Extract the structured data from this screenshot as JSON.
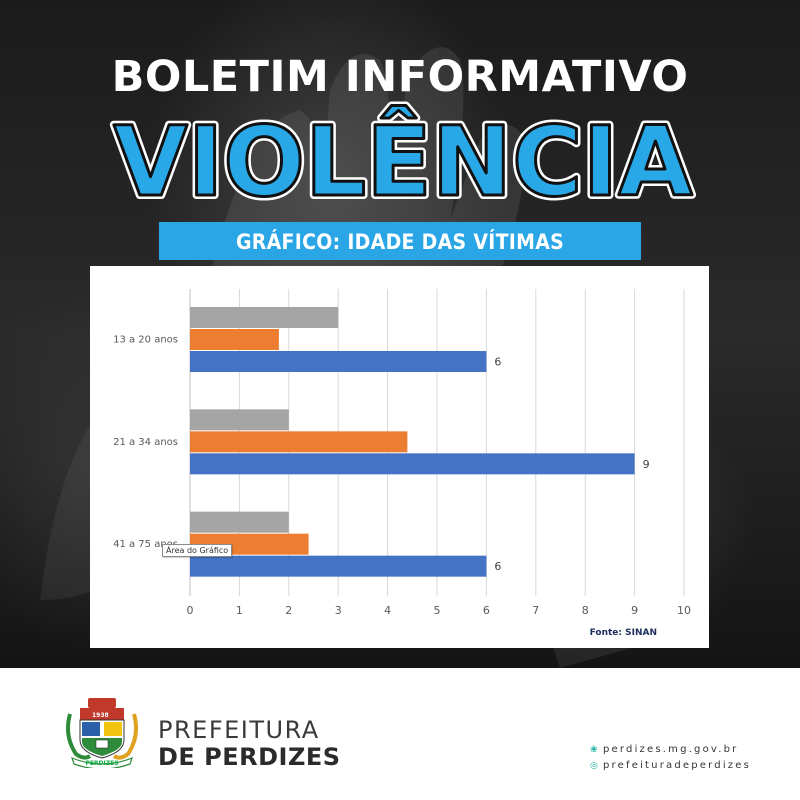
{
  "header": {
    "title_line1": "BOLETIM INFORMATIVO",
    "title_line2": "VIOLÊNCIA",
    "banner": "GRÁFICO: IDADE DAS VÍTIMAS"
  },
  "chart_data": {
    "type": "bar",
    "orientation": "horizontal",
    "categories": [
      "13 a 20 anos",
      "21 a 34 anos",
      "41 a 75 anos"
    ],
    "series": [
      {
        "values": [
          3,
          2,
          2
        ],
        "color": "#a5a5a5"
      },
      {
        "values": [
          1.8,
          4.4,
          2.4
        ],
        "color": "#ed7d31"
      },
      {
        "values": [
          6,
          9,
          6
        ],
        "color": "#4472c4",
        "data_labels": [
          "6",
          "9",
          "6"
        ]
      }
    ],
    "xlim": [
      0,
      10
    ],
    "x_ticks": [
      "0",
      "1",
      "2",
      "3",
      "4",
      "5",
      "6",
      "7",
      "8",
      "9",
      "10"
    ],
    "grid": true,
    "source": "Fonte: SINAN",
    "tooltip": "Área do Gráfico"
  },
  "footer": {
    "org_line1": "PREFEITURA",
    "org_line2": "DE PERDIZES",
    "crest_year": "1938",
    "crest_name": "PERDIZES",
    "website": "perdizes.mg.gov.br",
    "instagram": "prefeituradeperdizes",
    "website_icon": "globe-icon",
    "instagram_icon": "instagram-icon"
  }
}
